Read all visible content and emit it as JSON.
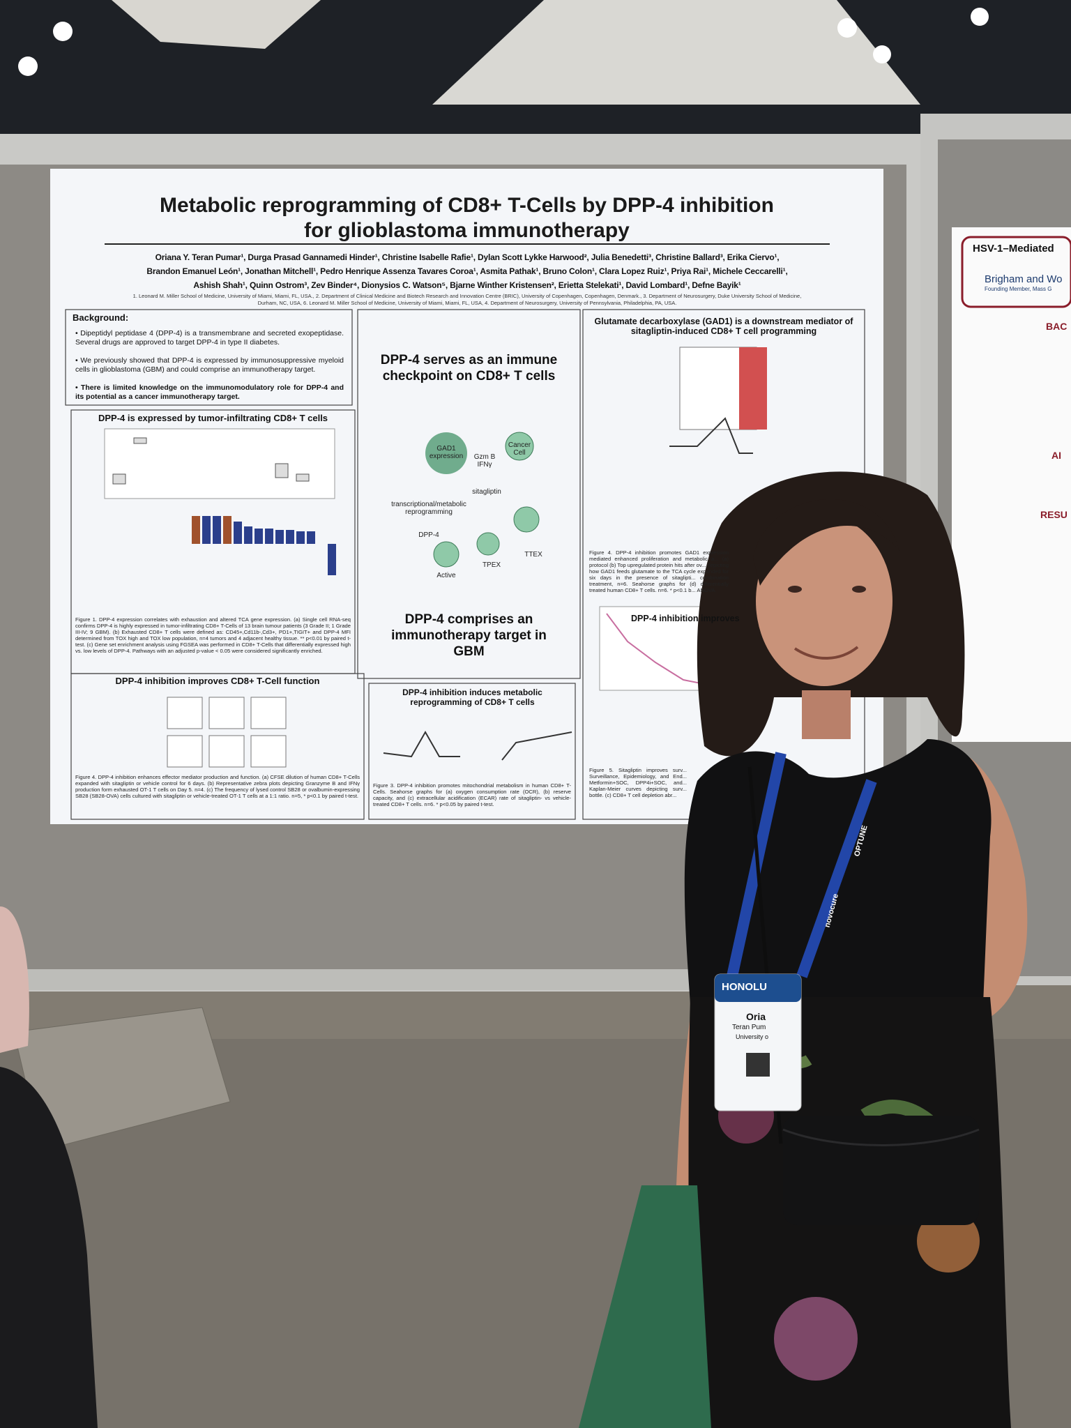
{
  "poster": {
    "title": [
      "Metabolic reprogramming of CD8+ T-Cells by DPP-4 inhibition",
      "for glioblastoma immunotherapy"
    ],
    "authors": [
      "Oriana Y. Teran Pumar¹, Durga Prasad Gannamedi Hinder¹, Christine Isabelle Rafie¹, Dylan Scott Lykke Harwood², Julia Benedetti³, Christine Ballard³, Erika Ciervo¹,",
      "Brandon Emanuel León¹, Jonathan Mitchell¹, Pedro Henrique Assenza Tavares Coroa¹, Asmita Pathak¹, Bruno Colon¹, Clara Lopez Ruiz¹, Priya Rai¹, Michele Ceccarelli¹,",
      "Ashish Shah¹, Quinn Ostrom³, Zev Binder⁴, Dionysios C. Watson⁵, Bjarne Winther Kristensen², Erietta Stelekati¹, David Lombard¹, Defne Bayik¹"
    ],
    "affiliations": [
      "1. Leonard M. Miller School of Medicine, University of Miami, Miami, FL, USA., 2. Department of Clinical Medicine and Biotech Research and Innovation Centre (BRIC), University of Copenhagen, Copenhagen, Denmark., 3. Department of Neurosurgery, Duke University School of Medicine,",
      "Durham, NC, USA, 6. Leonard M. Miller School of Medicine, University of Miami, Miami, FL, USA, 4. Department of Neurosurgery, University of Pennsylvania, Philadelphia, PA, USA."
    ],
    "background": {
      "heading": "Background:",
      "bullets": [
        "Dipeptidyl peptidase 4 (DPP-4) is a transmembrane and secreted exopeptidase. Several drugs are approved to target DPP-4 in type II diabetes.",
        "We previously showed that DPP-4 is expressed by immunosuppressive myeloid cells in glioblastoma (GBM) and could comprise an immunotherapy target.",
        "There is limited knowledge on the immunomodulatory role for DPP-4 and its potential as a cancer immunotherapy target."
      ]
    },
    "panels": [
      {
        "heading": "DPP-4 is expressed by tumor-infiltrating CD8+ T cells",
        "caption": "Figure 1. DPP-4 expression correlates with exhaustion and altered TCA gene expression. (a) Single cell RNA-seq confirms DPP-4 is highly expressed in tumor-infiltrating CD8+ T-Cells of 13 brain tumour patients (3 Grade II; 1 Grade III-IV; 9 GBM). (b) Exhausted CD8+ T cells were defined as: CD45+,Cd11b-,Cd3+, PD1+,TIGIT+ and DPP-4 MFI determined from TOX high and TOX low population, n=4 tumors and 4 adjacent healthy tissue. ** p<0.01 by paired t-test. (c) Gene set enrichment analysis using FGSEA was performed in CD8+ T-Cells that differentially expressed high vs. low levels of DPP-4. Pathways with an adjusted p-value < 0.05 were considered significantly enriched."
      },
      {
        "heading": "DPP-4 inhibition improves CD8+ T-Cell function",
        "caption": "Figure 4. DPP-4 inhibition enhances effector mediator production and function. (a) CFSE dilution of human CD8+ T-Cells expanded with sitagliptin or vehicle control for 6 days. (b) Representative zebra plots depicting Granzyme B and IFNγ production form exhausted OT-1 T cells on Day 5. n=4. (c) The frequency of lysed control SB28 or ovalbumin-expressing SB28 (SB28-OVA) cells cultured with sitagliptin or vehicle-treated OT-1 T cells at a 1:1 ratio. n=5, * p<0.1 by paired t-test."
      },
      {
        "heading": "DPP-4 inhibition induces metabolic reprogramming of CD8+ T cells",
        "caption": "Figure 3. DPP-4 inhibition promotes mitochondrial metabolism in human CD8+ T-Cells. Seahorse graphs for (a) oxygen consumption rate (OCR), (b) reserve capacity, and (c) extracellular acidification (ECAR) rate of sitagliptin- vs vehicle-treated CD8+ T cells. n=6. * p<0.05 by paired t-test."
      },
      {
        "heading": "Glutamate decarboxylase (GAD1) is a downstream mediator of sitagliptin-induced CD8+ T cell programming",
        "caption": "Figure 4. DPP-4 inhibition promotes GAD1 expression mediated enhanced proliferation and metabolic a... (a) protocol (b) Top upregulated protein hits after ov... depicting how GAD1 feeds glutamate to the TCA cycle expanded for six days in the presence of sitaglipti... combination treatment, n=6. Seahorse graphs for (d) differentially treated human CD8+ T cells. n=6. * p<0.1 b... ANOVA."
      },
      {
        "heading": "DPP-4 inhibition improves",
        "caption": "Figure 5. Sitagliptin improves surv... Surveillance, Epidemiology, and End... Metformin+SOC, DPP4i+SOC, and... Kaplan-Meier curves depicting surv... bottle. (c) CD8+ T cell depletion abr..."
      }
    ],
    "center": {
      "heading": "DPP-4 serves as an immune checkpoint on CD8+ T cells",
      "footer": "DPP-4 comprises an immunotherapy target in GBM",
      "labels": [
        "GAD1 expression",
        "Gzm B IFNγ",
        "Cancer Cell",
        "transcriptional/metabolic reprogramming",
        "sitagliptin",
        "DPP-4",
        "Active",
        "TPEX",
        "TTEX"
      ]
    }
  },
  "neighbor_poster": {
    "title": "HSV-1–Mediated",
    "institution": "Brigham and Wo",
    "tagline": "Founding Member, Mass G",
    "sections": [
      "BAC",
      "AI",
      "RESU"
    ]
  },
  "badge": {
    "event": "HONOLU",
    "name": "Oria",
    "surname": "Teran Pum",
    "affiliation": "University o"
  },
  "lanyard": [
    "OPTUNE",
    "novocure"
  ]
}
